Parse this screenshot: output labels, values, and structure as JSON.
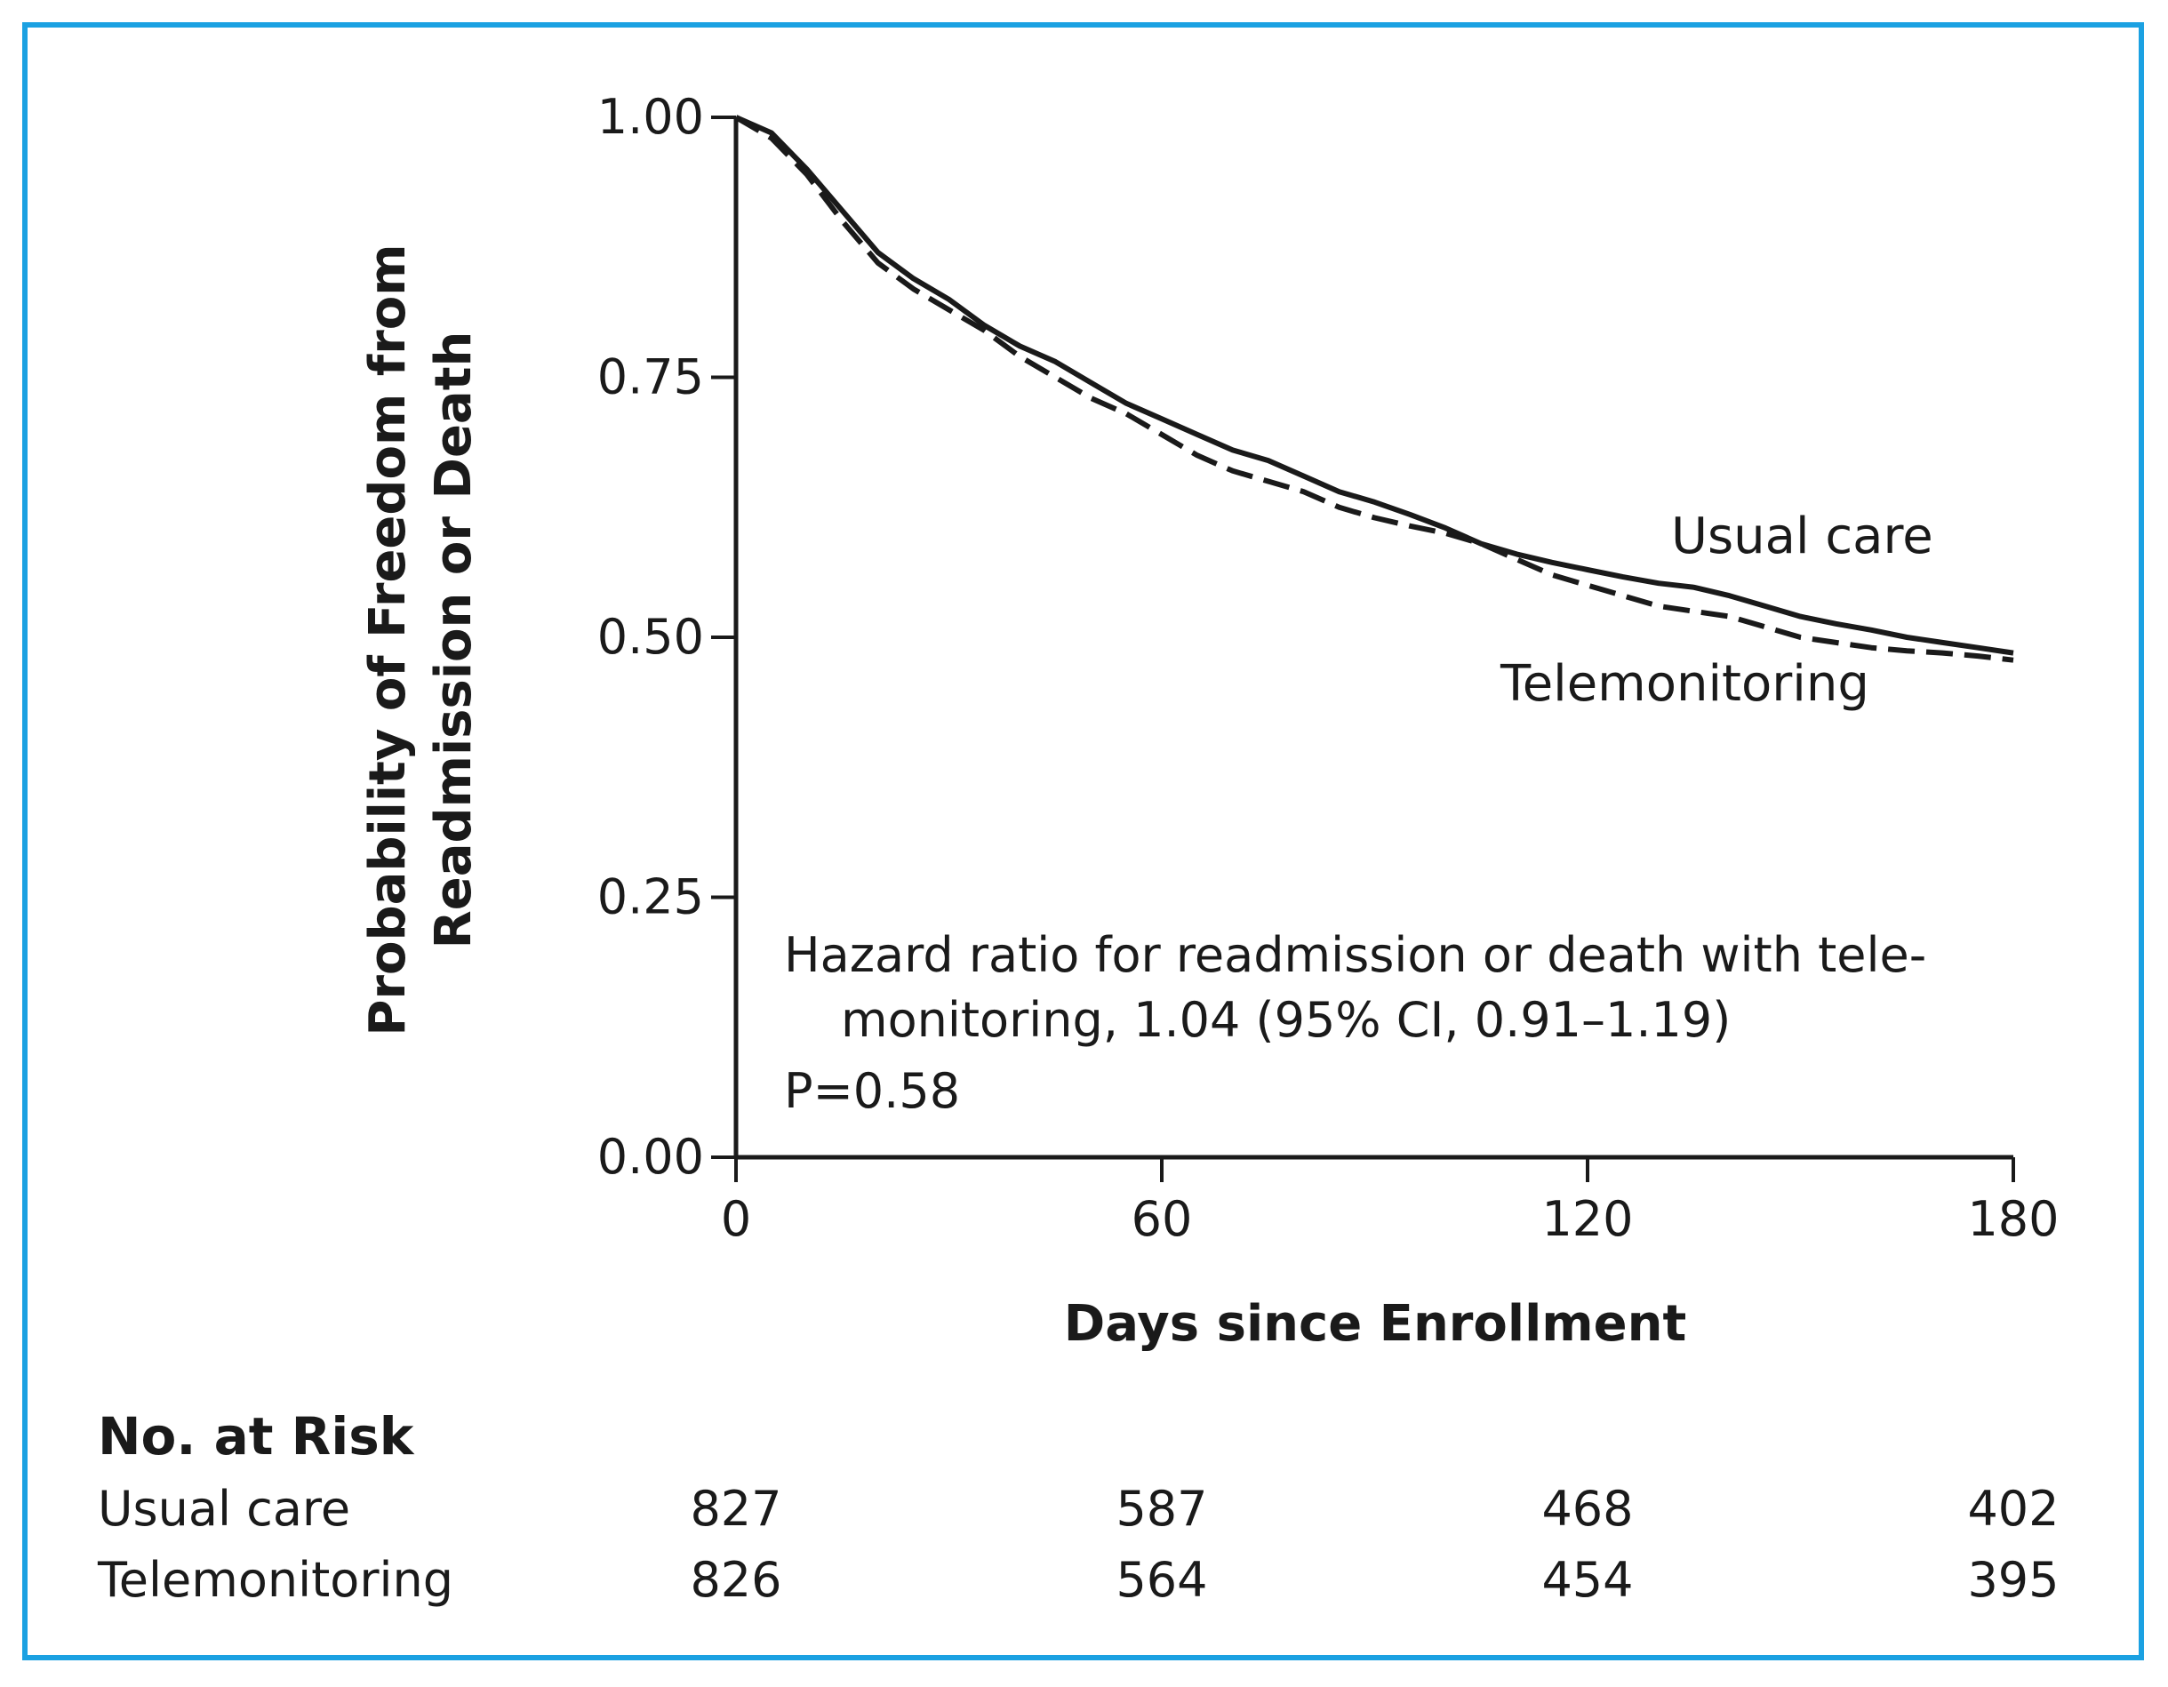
{
  "colors": {
    "frame_border": "#1ba1e2",
    "ink": "#1a1a1a",
    "background": "#ffffff"
  },
  "chart_data": {
    "type": "line",
    "title": "",
    "xlabel": "Days since Enrollment",
    "ylabel_lines": [
      "Probability of Freedom from",
      "Readmission or Death"
    ],
    "xlim": [
      0,
      180
    ],
    "ylim": [
      0,
      1
    ],
    "x_ticks": [
      "0",
      "60",
      "120",
      "180"
    ],
    "y_ticks": [
      "0.00",
      "0.25",
      "0.50",
      "0.75",
      "1.00"
    ],
    "grid": false,
    "series": [
      {
        "name": "Usual care",
        "style": "solid",
        "x": [
          0,
          5,
          10,
          15,
          20,
          25,
          30,
          35,
          40,
          45,
          50,
          55,
          60,
          65,
          70,
          75,
          80,
          85,
          90,
          95,
          100,
          105,
          110,
          115,
          120,
          125,
          130,
          135,
          140,
          145,
          150,
          155,
          160,
          165,
          170,
          175,
          180
        ],
        "y": [
          1.0,
          0.985,
          0.95,
          0.91,
          0.87,
          0.845,
          0.825,
          0.8,
          0.78,
          0.765,
          0.745,
          0.725,
          0.71,
          0.695,
          0.68,
          0.67,
          0.655,
          0.64,
          0.63,
          0.618,
          0.605,
          0.59,
          0.58,
          0.572,
          0.565,
          0.558,
          0.552,
          0.548,
          0.54,
          0.53,
          0.52,
          0.513,
          0.507,
          0.5,
          0.495,
          0.49,
          0.485
        ]
      },
      {
        "name": "Telemonitoring",
        "style": "dashed",
        "x": [
          0,
          5,
          10,
          15,
          20,
          25,
          30,
          35,
          40,
          45,
          50,
          55,
          60,
          65,
          70,
          75,
          80,
          85,
          90,
          95,
          100,
          105,
          110,
          115,
          120,
          125,
          130,
          135,
          140,
          145,
          150,
          155,
          160,
          165,
          170,
          175,
          180
        ],
        "y": [
          1.0,
          0.98,
          0.945,
          0.9,
          0.86,
          0.835,
          0.815,
          0.795,
          0.77,
          0.75,
          0.73,
          0.715,
          0.695,
          0.675,
          0.66,
          0.65,
          0.64,
          0.625,
          0.615,
          0.607,
          0.6,
          0.59,
          0.575,
          0.56,
          0.55,
          0.54,
          0.53,
          0.525,
          0.52,
          0.51,
          0.5,
          0.495,
          0.49,
          0.487,
          0.485,
          0.482,
          0.478
        ]
      }
    ],
    "curve_labels": [
      "Usual care",
      "Telemonitoring"
    ],
    "annotation": {
      "line1": "Hazard ratio for readmission or death with tele-",
      "line2": "monitoring, 1.04 (95% CI, 0.91–1.19)",
      "line3": "P=0.58"
    },
    "at_risk": {
      "title": "No. at Risk",
      "days": [
        0,
        60,
        120,
        180
      ],
      "rows": [
        {
          "label": "Usual care",
          "values": [
            "827",
            "587",
            "468",
            "402"
          ]
        },
        {
          "label": "Telemonitoring",
          "values": [
            "826",
            "564",
            "454",
            "395"
          ]
        }
      ]
    }
  }
}
